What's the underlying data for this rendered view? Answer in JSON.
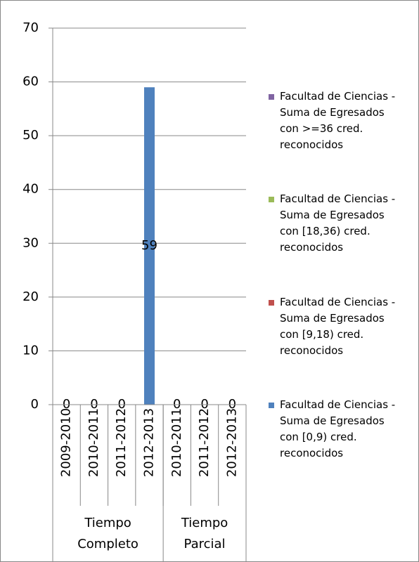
{
  "chart_data": {
    "type": "stacked_bar",
    "categories": [
      "2009-2010",
      "2010-2011",
      "2011-2012",
      "2012-2013",
      "2010-2011",
      "2011-2012",
      "2012-2013"
    ],
    "groups": [
      {
        "label": "Tiempo Completo",
        "size": 4
      },
      {
        "label": "Tiempo Parcial",
        "size": 3
      }
    ],
    "series": [
      {
        "name": "Facultad de Ciencias - Suma de Egresados con >=36 cred. reconocidos",
        "color": "#8064a2",
        "values": [
          0,
          0,
          0,
          0,
          0,
          0,
          0
        ],
        "data_labels": false
      },
      {
        "name": "Facultad de Ciencias - Suma de Egresados con [18,36) cred. reconocidos",
        "color": "#9bbb59",
        "values": [
          0,
          0,
          0,
          0,
          0,
          0,
          0
        ],
        "data_labels": false
      },
      {
        "name": "Facultad de Ciencias - Suma de Egresados con [9,18) cred. reconocidos",
        "color": "#c0504d",
        "values": [
          0,
          0,
          0,
          0,
          0,
          0,
          0
        ],
        "data_labels": false
      },
      {
        "name": "Facultad de Ciencias - Suma de Egresados con [0,9) cred. reconocidos",
        "color": "#4f81bd",
        "values": [
          0,
          0,
          0,
          59,
          0,
          0,
          0
        ],
        "data_labels": true
      }
    ],
    "ylim": [
      0,
      70
    ],
    "yticks": [
      0,
      10,
      20,
      30,
      40,
      50,
      60,
      70
    ],
    "grid": true,
    "legend": "right"
  }
}
